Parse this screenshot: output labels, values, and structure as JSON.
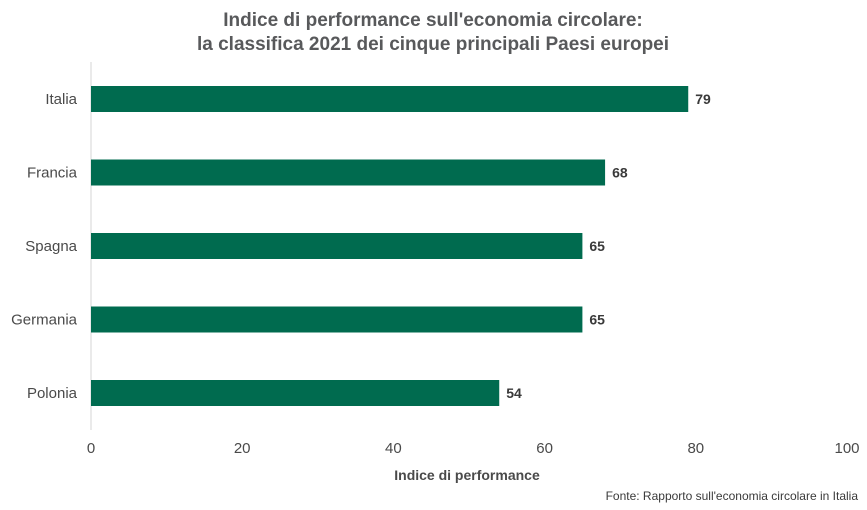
{
  "chart_data": {
    "type": "bar",
    "orientation": "horizontal",
    "title_lines": [
      "Indice di performance sull'economia circolare:",
      "la classifica 2021 dei cinque principali Paesi europei"
    ],
    "categories": [
      "Italia",
      "Francia",
      "Spagna",
      "Germania",
      "Polonia"
    ],
    "values": [
      79,
      68,
      65,
      65,
      54
    ],
    "xlabel": "Indice di performance",
    "ylabel": "",
    "xlim": [
      0,
      100
    ],
    "xticks": [
      0,
      20,
      40,
      60,
      80,
      100
    ],
    "bar_color": "#006b4f",
    "grid": false,
    "legend": "none",
    "source": "Fonte: Rapporto sull'economia circolare in Italia"
  }
}
